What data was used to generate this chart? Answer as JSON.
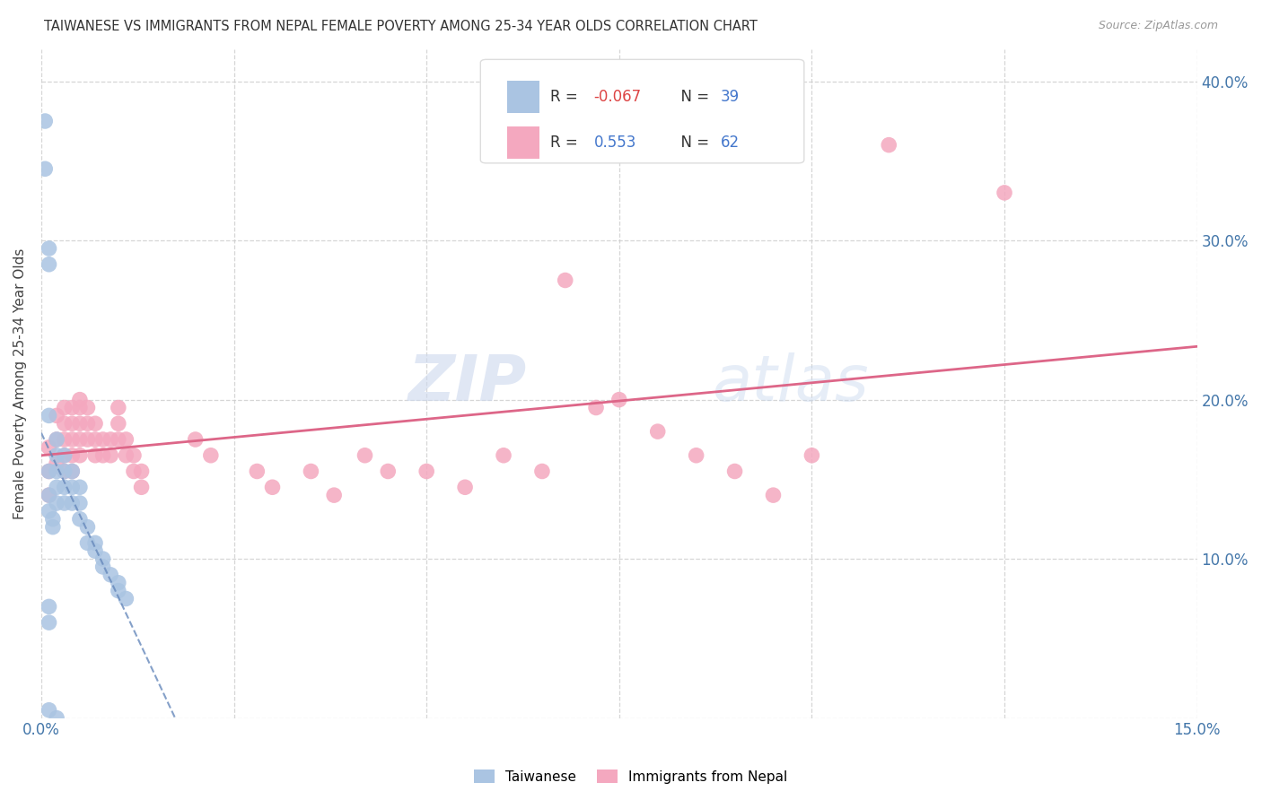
{
  "title": "TAIWANESE VS IMMIGRANTS FROM NEPAL FEMALE POVERTY AMONG 25-34 YEAR OLDS CORRELATION CHART",
  "source": "Source: ZipAtlas.com",
  "ylabel": "Female Poverty Among 25-34 Year Olds",
  "xlim": [
    0.0,
    0.15
  ],
  "ylim": [
    0.0,
    0.42
  ],
  "x_ticks": [
    0.0,
    0.025,
    0.05,
    0.075,
    0.1,
    0.125,
    0.15
  ],
  "y_ticks": [
    0.0,
    0.1,
    0.2,
    0.3,
    0.4
  ],
  "r_taiwanese": -0.067,
  "n_taiwanese": 39,
  "r_nepal": 0.553,
  "n_nepal": 62,
  "taiwanese_color": "#aac4e2",
  "nepal_color": "#f4a8bf",
  "trend_taiwanese_color": "#6688bb",
  "trend_nepal_color": "#dd6688",
  "background_color": "#ffffff",
  "watermark_zip": "ZIP",
  "watermark_atlas": "atlas",
  "taiwanese_x": [
    0.0005,
    0.0005,
    0.001,
    0.001,
    0.001,
    0.001,
    0.001,
    0.001,
    0.0015,
    0.0015,
    0.002,
    0.002,
    0.002,
    0.002,
    0.002,
    0.003,
    0.003,
    0.003,
    0.003,
    0.004,
    0.004,
    0.004,
    0.005,
    0.005,
    0.005,
    0.006,
    0.006,
    0.007,
    0.007,
    0.008,
    0.008,
    0.009,
    0.01,
    0.01,
    0.011,
    0.001,
    0.001,
    0.001,
    0.002
  ],
  "taiwanese_y": [
    0.375,
    0.345,
    0.295,
    0.285,
    0.19,
    0.155,
    0.14,
    0.13,
    0.125,
    0.12,
    0.175,
    0.165,
    0.155,
    0.145,
    0.135,
    0.165,
    0.155,
    0.145,
    0.135,
    0.155,
    0.145,
    0.135,
    0.145,
    0.135,
    0.125,
    0.12,
    0.11,
    0.11,
    0.105,
    0.1,
    0.095,
    0.09,
    0.085,
    0.08,
    0.075,
    0.07,
    0.06,
    0.005,
    0.0
  ],
  "nepal_x": [
    0.001,
    0.001,
    0.001,
    0.002,
    0.002,
    0.002,
    0.003,
    0.003,
    0.003,
    0.003,
    0.003,
    0.004,
    0.004,
    0.004,
    0.004,
    0.004,
    0.005,
    0.005,
    0.005,
    0.005,
    0.005,
    0.006,
    0.006,
    0.006,
    0.007,
    0.007,
    0.007,
    0.008,
    0.008,
    0.009,
    0.009,
    0.01,
    0.01,
    0.01,
    0.011,
    0.011,
    0.012,
    0.012,
    0.013,
    0.013,
    0.02,
    0.022,
    0.028,
    0.03,
    0.035,
    0.038,
    0.042,
    0.045,
    0.05,
    0.055,
    0.06,
    0.065,
    0.068,
    0.072,
    0.075,
    0.08,
    0.085,
    0.09,
    0.095,
    0.1,
    0.11,
    0.125
  ],
  "nepal_y": [
    0.17,
    0.155,
    0.14,
    0.19,
    0.175,
    0.16,
    0.195,
    0.185,
    0.175,
    0.165,
    0.155,
    0.195,
    0.185,
    0.175,
    0.165,
    0.155,
    0.2,
    0.195,
    0.185,
    0.175,
    0.165,
    0.195,
    0.185,
    0.175,
    0.185,
    0.175,
    0.165,
    0.175,
    0.165,
    0.175,
    0.165,
    0.195,
    0.185,
    0.175,
    0.175,
    0.165,
    0.165,
    0.155,
    0.155,
    0.145,
    0.175,
    0.165,
    0.155,
    0.145,
    0.155,
    0.14,
    0.165,
    0.155,
    0.155,
    0.145,
    0.165,
    0.155,
    0.275,
    0.195,
    0.2,
    0.18,
    0.165,
    0.155,
    0.14,
    0.165,
    0.36,
    0.33
  ]
}
